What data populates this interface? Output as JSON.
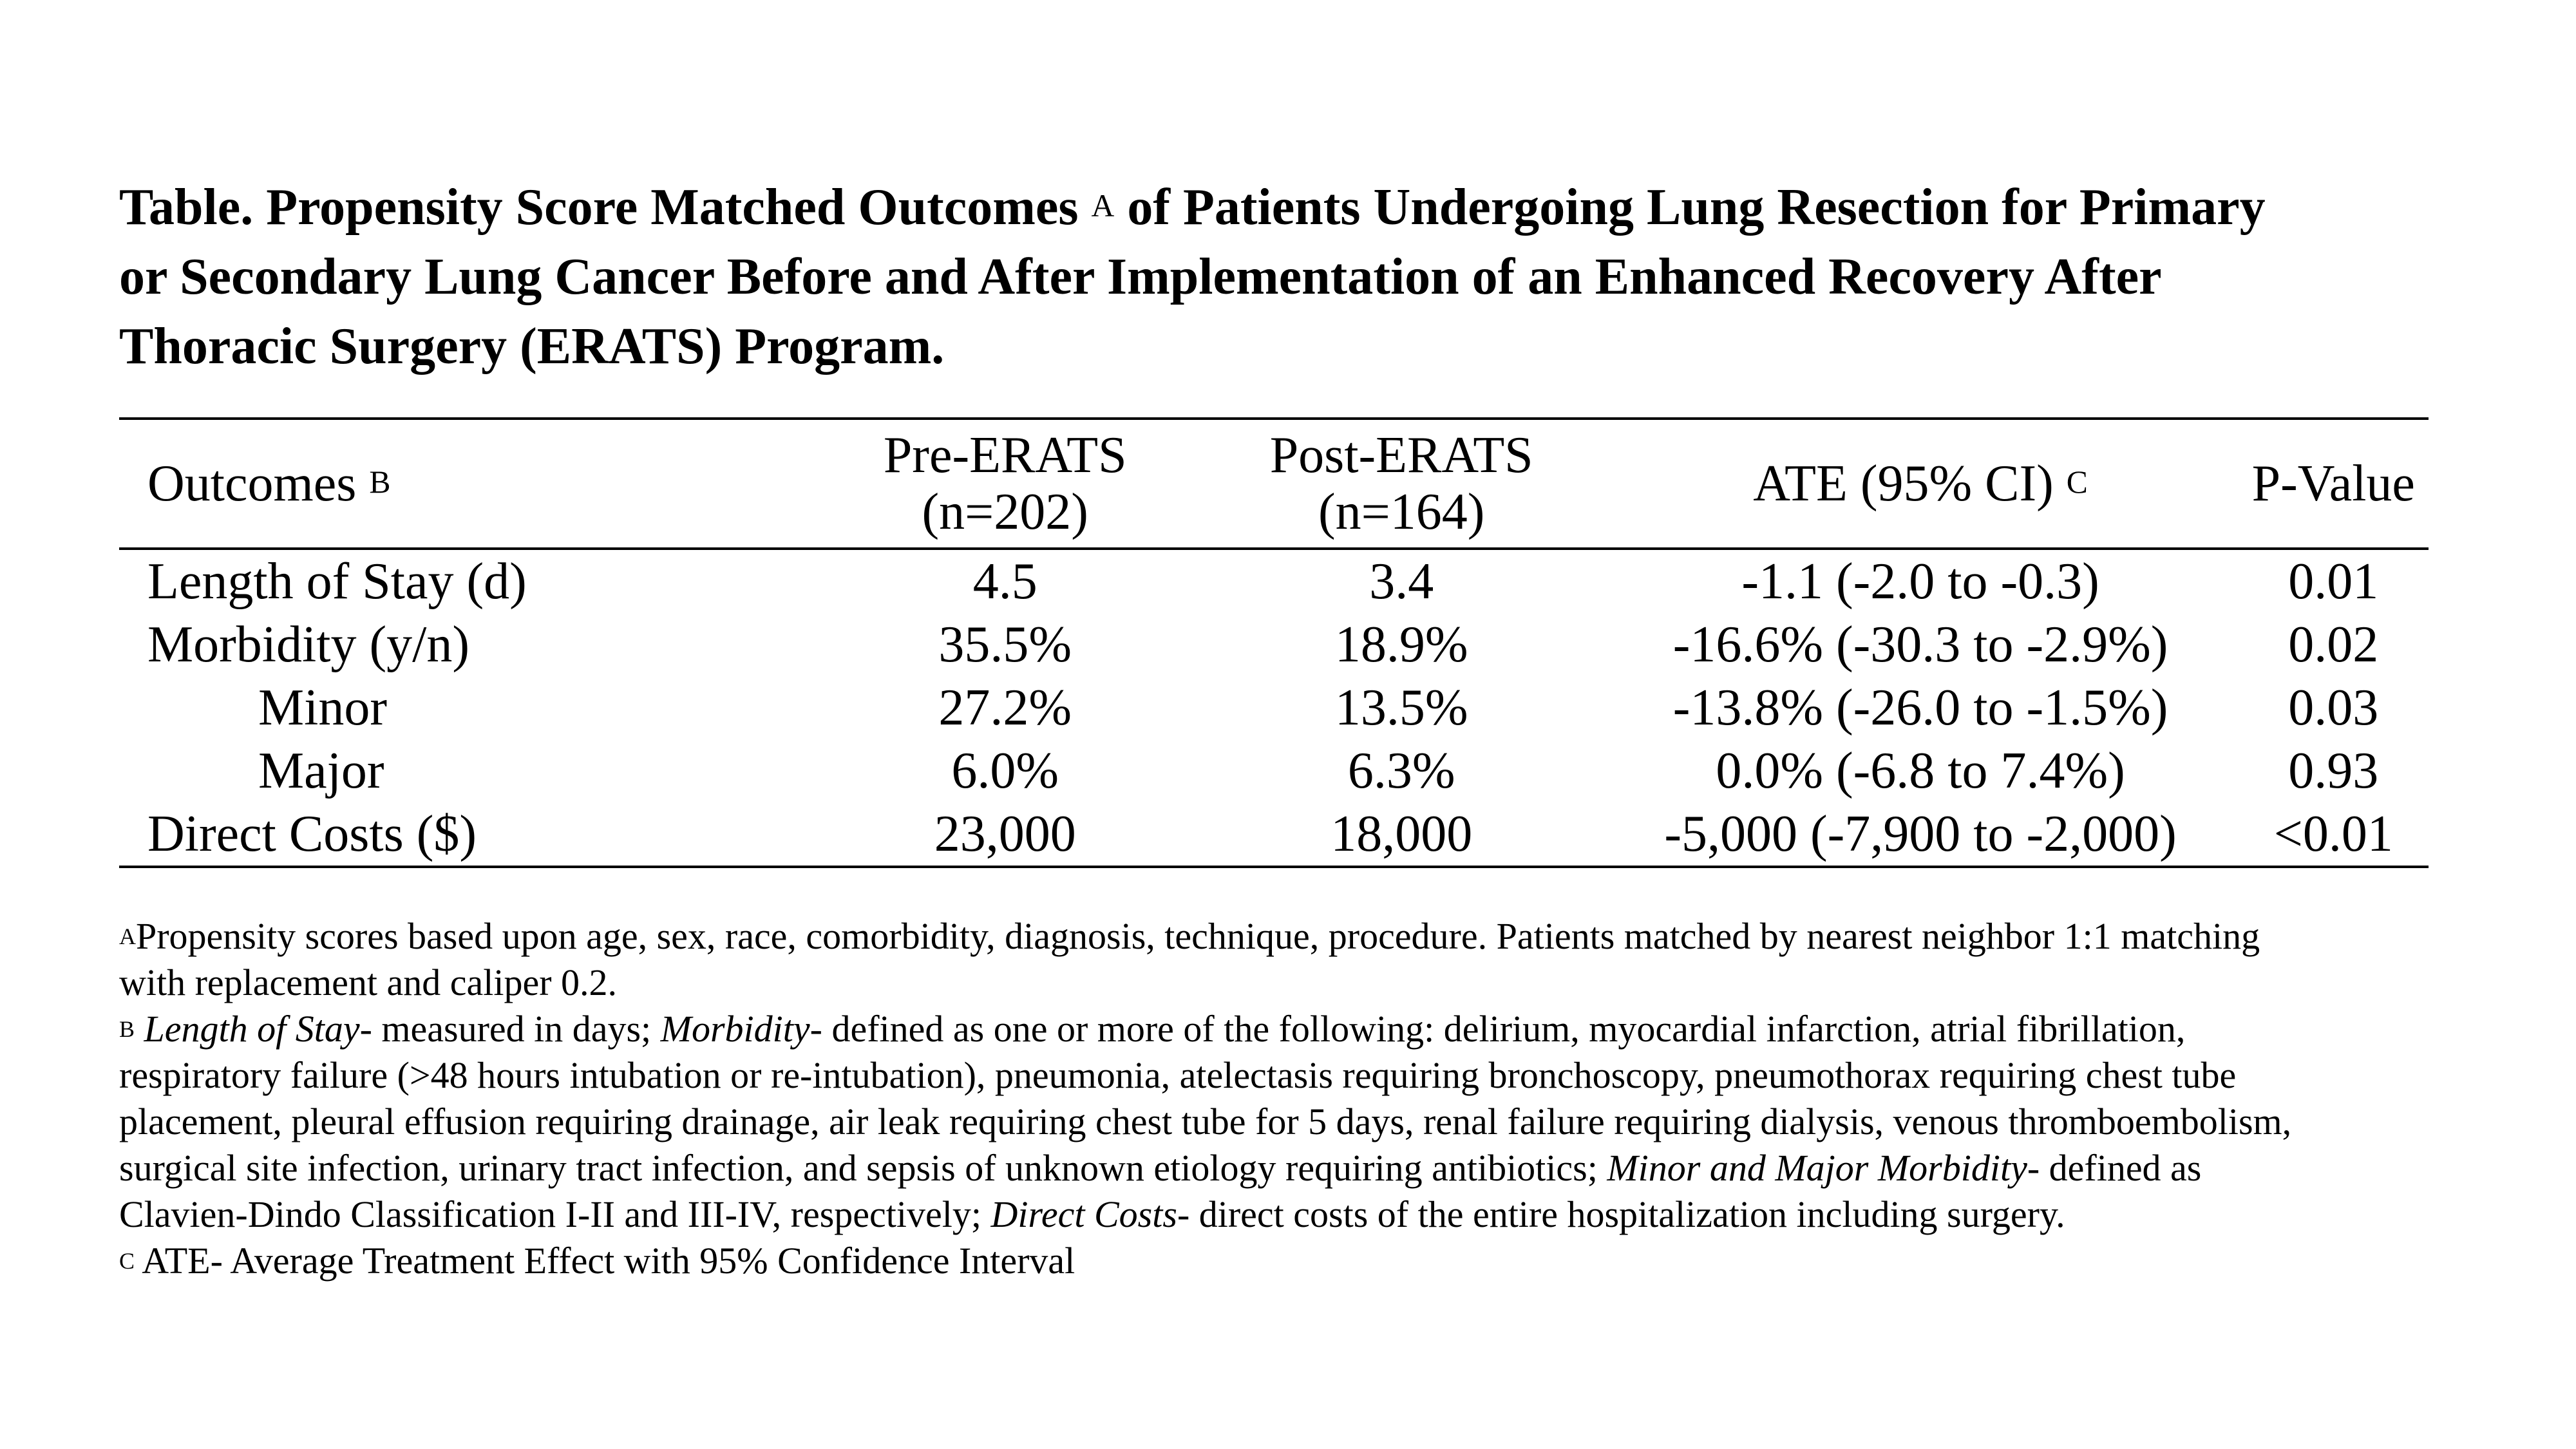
{
  "title": {
    "line1_pre": "Table.  Propensity Score Matched Outcomes",
    "line1_sup": "A",
    "line1_post": " of Patients Undergoing Lung Resection for Primary",
    "line2": "or Secondary Lung Cancer Before and After Implementation of an Enhanced Recovery After",
    "line3": "Thoracic Surgery (ERATS) Program."
  },
  "table": {
    "headers": {
      "outcomes": "Outcomes",
      "outcomes_sup": "B",
      "pre_line1": "Pre-ERATS",
      "pre_line2": "(n=202)",
      "post_line1": "Post-ERATS",
      "post_line2": "(n=164)",
      "ate": "ATE (95% CI)",
      "ate_sup": "C",
      "pvalue": "P-Value"
    },
    "rows": [
      {
        "outcome": "Length of Stay (d)",
        "pre": "4.5",
        "post": "3.4",
        "ate": "-1.1 (-2.0 to -0.3)",
        "p": "0.01"
      },
      {
        "outcome": "Morbidity (y/n)",
        "pre": "35.5%",
        "post": "18.9%",
        "ate": "-16.6% (-30.3 to -2.9%)",
        "p": "0.02"
      },
      {
        "outcome": "Minor",
        "pre": "27.2%",
        "post": "13.5%",
        "ate": "-13.8% (-26.0 to -1.5%)",
        "p": "0.03"
      },
      {
        "outcome": "Major",
        "pre": "6.0%",
        "post": "6.3%",
        "ate": "0.0% (-6.8 to 7.4%)",
        "p": "0.93"
      },
      {
        "outcome": "Direct Costs ($)",
        "pre": "23,000",
        "post": "18,000",
        "ate": "-5,000 (-7,900 to -2,000)",
        "p": "<0.01"
      }
    ]
  },
  "footnotes": {
    "a_sup": "A",
    "a_line1": "Propensity scores based upon age, sex, race, comorbidity, diagnosis, technique, procedure.  Patients matched by nearest neighbor 1:1 matching",
    "a_line2": "with replacement and caliper 0.2.",
    "b_sup": "B",
    "b_los_term": "Length of Stay",
    "b_los_text": "- measured in days; ",
    "b_morb_term": "Morbidity",
    "b_morb_text": "- defined as one or more of the following: delirium, myocardial infarction, atrial fibrillation,",
    "b_line2": "respiratory failure (>48 hours intubation or re-intubation), pneumonia, atelectasis requiring bronchoscopy, pneumothorax requiring chest tube",
    "b_line3": "placement, pleural effusion requiring drainage, air leak requiring chest tube for 5 days, renal failure requiring dialysis, venous thromboembolism,",
    "b_line4_text": "surgical site infection, urinary tract infection, and sepsis of unknown etiology requiring antibiotics; ",
    "b_minmaj_term": "Minor and Major Morbidity",
    "b_minmaj_text": "- defined as",
    "b_line5_text": "Clavien-Dindo Classification I-II and III-IV, respectively; ",
    "b_costs_term": "Direct Costs",
    "b_costs_text": "- direct costs of the entire hospitalization including surgery.",
    "c_sup": "C",
    "c_text": " ATE- Average Treatment Effect with 95% Confidence Interval"
  }
}
